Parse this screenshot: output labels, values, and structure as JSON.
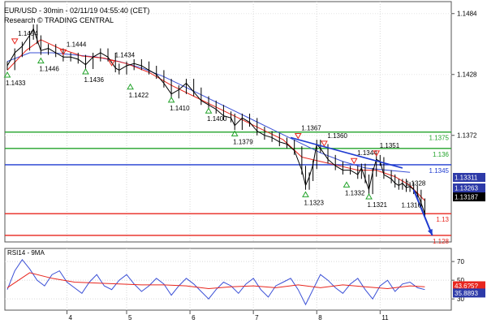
{
  "header": {
    "title": "EUR/USD - 30min - 02/11/19 04:55:40 (CET)",
    "source": "Research © TRADING CENTRAL"
  },
  "colors": {
    "price": "#000000",
    "ma_red": "#e8261e",
    "ma_blue": "#3a4fd6",
    "support": "#e8261e",
    "resistance": "#22a32a",
    "pivot": "#1f3bd0",
    "arrow": "#1f3bd0",
    "axis_tag": "#2d3aa8",
    "rsi": "#3a4fd6",
    "rsi_ma": "#e8261e"
  },
  "chart_data": [
    {
      "type": "line",
      "title": "EUR/USD - 30min - 02/11/19 04:55:40 (CET)",
      "x_tick_labels": [
        "4",
        "5",
        "6",
        "7",
        "8",
        "11"
      ],
      "y_tick_labels": [
        "1.1484",
        "1.1428",
        "1.1372"
      ],
      "ylim": [
        1.1274,
        1.1495
      ],
      "series": [
        {
          "values": [
            [
              0,
              1.1436
            ],
            [
              2,
              1.1448
            ],
            [
              4,
              1.1454
            ],
            [
              6,
              1.1464
            ],
            [
              7,
              1.147
            ],
            [
              8,
              1.146
            ],
            [
              9,
              1.145
            ],
            [
              11,
              1.1452
            ],
            [
              13,
              1.1448
            ],
            [
              15,
              1.1444
            ],
            [
              17,
              1.1444
            ],
            [
              19,
              1.1442
            ],
            [
              21,
              1.1437
            ],
            [
              23,
              1.1444
            ],
            [
              25,
              1.1448
            ],
            [
              27,
              1.1444
            ],
            [
              29,
              1.1434
            ],
            [
              30,
              1.1432
            ],
            [
              32,
              1.1436
            ],
            [
              34,
              1.1438
            ],
            [
              36,
              1.1436
            ],
            [
              38,
              1.1432
            ],
            [
              40,
              1.1428
            ],
            [
              42,
              1.142
            ],
            [
              44,
              1.141
            ],
            [
              46,
              1.1414
            ],
            [
              48,
              1.142
            ],
            [
              50,
              1.1412
            ],
            [
              52,
              1.1404
            ],
            [
              54,
              1.14
            ],
            [
              56,
              1.1396
            ],
            [
              58,
              1.139
            ],
            [
              60,
              1.1388
            ],
            [
              61,
              1.1381
            ],
            [
              63,
              1.1388
            ],
            [
              65,
              1.1384
            ],
            [
              67,
              1.1376
            ],
            [
              69,
              1.1372
            ],
            [
              71,
              1.137
            ],
            [
              73,
              1.1366
            ],
            [
              75,
              1.1364
            ],
            [
              77,
              1.1358
            ],
            [
              79,
              1.134
            ],
            [
              80,
              1.1326
            ],
            [
              81,
              1.1334
            ],
            [
              82,
              1.1345
            ],
            [
              83,
              1.1364
            ],
            [
              84,
              1.136
            ],
            [
              86,
              1.135
            ],
            [
              88,
              1.1344
            ],
            [
              90,
              1.134
            ],
            [
              92,
              1.134
            ],
            [
              94,
              1.1336
            ],
            [
              95,
              1.1342
            ],
            [
              96,
              1.1332
            ],
            [
              97,
              1.1322
            ],
            [
              98,
              1.1338
            ],
            [
              99,
              1.135
            ],
            [
              100,
              1.1348
            ],
            [
              101,
              1.1336
            ],
            [
              103,
              1.1332
            ],
            [
              104,
              1.1328
            ],
            [
              105,
              1.1326
            ],
            [
              106,
              1.1328
            ],
            [
              107,
              1.1324
            ],
            [
              108,
              1.1325
            ],
            [
              109,
              1.1322
            ],
            [
              110,
              1.1318
            ],
            [
              111,
              1.131
            ],
            [
              112,
              1.13
            ]
          ]
        },
        {
          "name": "MA fast",
          "values": [
            [
              0,
              1.1432
            ],
            [
              5,
              1.145
            ],
            [
              9,
              1.146
            ],
            [
              14,
              1.1452
            ],
            [
              20,
              1.1445
            ],
            [
              26,
              1.1443
            ],
            [
              32,
              1.1438
            ],
            [
              38,
              1.143
            ],
            [
              44,
              1.1418
            ],
            [
              50,
              1.1408
            ],
            [
              56,
              1.1398
            ],
            [
              62,
              1.1388
            ],
            [
              68,
              1.1378
            ],
            [
              74,
              1.1368
            ],
            [
              79,
              1.1352
            ],
            [
              84,
              1.1348
            ],
            [
              89,
              1.1344
            ],
            [
              94,
              1.134
            ],
            [
              99,
              1.134
            ],
            [
              104,
              1.1334
            ],
            [
              108,
              1.1326
            ],
            [
              112,
              1.1312
            ]
          ]
        },
        {
          "name": "MA slow",
          "values": [
            [
              0,
              1.144
            ],
            [
              6,
              1.1448
            ],
            [
              12,
              1.1448
            ],
            [
              18,
              1.1446
            ],
            [
              24,
              1.1444
            ],
            [
              30,
              1.144
            ],
            [
              36,
              1.1434
            ],
            [
              42,
              1.1426
            ],
            [
              48,
              1.1416
            ],
            [
              54,
              1.1406
            ],
            [
              60,
              1.1396
            ],
            [
              66,
              1.1386
            ],
            [
              72,
              1.1376
            ],
            [
              78,
              1.1366
            ],
            [
              84,
              1.1356
            ],
            [
              90,
              1.1348
            ],
            [
              96,
              1.1342
            ],
            [
              102,
              1.134
            ],
            [
              108,
              1.1338
            ]
          ]
        }
      ],
      "extremes": [
        {
          "x": 2,
          "value": 1.1454,
          "label": "1.1454",
          "kind": "high"
        },
        {
          "x": 15,
          "value": 1.1444,
          "label": "1.1444",
          "kind": "high"
        },
        {
          "x": 28,
          "value": 1.1434,
          "label": "1.1434",
          "kind": "high"
        },
        {
          "x": 78,
          "value": 1.1367,
          "label": "1.1367",
          "kind": "high"
        },
        {
          "x": 85,
          "value": 1.136,
          "label": "1.1360",
          "kind": "high"
        },
        {
          "x": 93,
          "value": 1.1344,
          "label": "1.1344",
          "kind": "high"
        },
        {
          "x": 99,
          "value": 1.1351,
          "label": "1.1351",
          "kind": "high"
        },
        {
          "x": 0,
          "value": 1.1433,
          "label": "1.1433",
          "kind": "low"
        },
        {
          "x": 9,
          "value": 1.1446,
          "label": "1.1446",
          "kind": "low"
        },
        {
          "x": 21,
          "value": 1.1436,
          "label": "1.1436",
          "kind": "low"
        },
        {
          "x": 33,
          "value": 1.1422,
          "label": "1.1422",
          "kind": "low"
        },
        {
          "x": 44,
          "value": 1.141,
          "label": "1.1410",
          "kind": "low"
        },
        {
          "x": 54,
          "value": 1.14,
          "label": "1.1400",
          "kind": "low"
        },
        {
          "x": 61,
          "value": 1.1379,
          "label": "1.1379",
          "kind": "low"
        },
        {
          "x": 80,
          "value": 1.1323,
          "label": "1.1323",
          "kind": "low"
        },
        {
          "x": 91,
          "value": 1.1332,
          "label": "1.1332",
          "kind": "low"
        },
        {
          "x": 97,
          "value": 1.1321,
          "label": "1.1321",
          "kind": "low"
        },
        {
          "x": 106,
          "value": 1.1328,
          "label": "1.1328",
          "kind": "high-minor"
        },
        {
          "x": 107,
          "value": 1.1316,
          "label": "1.1316",
          "kind": "low-minor"
        }
      ],
      "levels": [
        {
          "value": 1.1375,
          "label": "1.1375",
          "role": "resistance"
        },
        {
          "value": 1.136,
          "label": "1.136",
          "role": "resistance"
        },
        {
          "value": 1.1345,
          "label": "1.1345",
          "role": "pivot"
        },
        {
          "value": 1.13,
          "label": "1.13",
          "role": "support"
        },
        {
          "value": 1.128,
          "label": "1.128",
          "role": "support"
        }
      ],
      "axis_tags": [
        {
          "value": 1.13311,
          "label": "1.13311"
        },
        {
          "value": 1.13263,
          "label": "1.13263"
        },
        {
          "value": 1.13187,
          "label": "1.13187"
        }
      ],
      "trendline": {
        "from": [
          76,
          1.137
        ],
        "to": [
          106,
          1.1342
        ]
      },
      "forecast_arrow": {
        "from": [
          109,
          1.1322
        ],
        "to": [
          114,
          1.128
        ]
      }
    },
    {
      "type": "line",
      "title": "RSI14 - 9MA",
      "x_tick_labels": [
        "4",
        "5",
        "6",
        "7",
        "8",
        "11"
      ],
      "y_tick_labels": [
        "70",
        "50",
        "30"
      ],
      "ylim": [
        18,
        84
      ],
      "series": [
        {
          "values": [
            [
              0,
              40
            ],
            [
              2,
              60
            ],
            [
              4,
              72
            ],
            [
              6,
              62
            ],
            [
              8,
              50
            ],
            [
              10,
              44
            ],
            [
              12,
              56
            ],
            [
              14,
              60
            ],
            [
              16,
              48
            ],
            [
              18,
              42
            ],
            [
              20,
              36
            ],
            [
              22,
              48
            ],
            [
              24,
              56
            ],
            [
              26,
              44
            ],
            [
              28,
              40
            ],
            [
              30,
              50
            ],
            [
              32,
              56
            ],
            [
              34,
              46
            ],
            [
              36,
              38
            ],
            [
              38,
              44
            ],
            [
              40,
              52
            ],
            [
              42,
              46
            ],
            [
              44,
              34
            ],
            [
              46,
              44
            ],
            [
              48,
              52
            ],
            [
              50,
              46
            ],
            [
              52,
              38
            ],
            [
              54,
              30
            ],
            [
              56,
              40
            ],
            [
              58,
              48
            ],
            [
              60,
              44
            ],
            [
              62,
              36
            ],
            [
              64,
              46
            ],
            [
              66,
              52
            ],
            [
              68,
              40
            ],
            [
              70,
              32
            ],
            [
              72,
              44
            ],
            [
              74,
              48
            ],
            [
              76,
              52
            ],
            [
              78,
              40
            ],
            [
              80,
              24
            ],
            [
              82,
              40
            ],
            [
              84,
              56
            ],
            [
              86,
              50
            ],
            [
              88,
              42
            ],
            [
              90,
              36
            ],
            [
              92,
              46
            ],
            [
              94,
              52
            ],
            [
              96,
              40
            ],
            [
              98,
              30
            ],
            [
              100,
              44
            ],
            [
              102,
              50
            ],
            [
              104,
              38
            ],
            [
              106,
              46
            ],
            [
              108,
              48
            ],
            [
              110,
              42
            ],
            [
              112,
              40
            ]
          ]
        },
        {
          "values": [
            [
              0,
              42
            ],
            [
              6,
              58
            ],
            [
              12,
              52
            ],
            [
              18,
              48
            ],
            [
              24,
              47
            ],
            [
              30,
              46
            ],
            [
              36,
              45
            ],
            [
              42,
              45
            ],
            [
              48,
              44
            ],
            [
              54,
              41
            ],
            [
              60,
              43
            ],
            [
              66,
              44
            ],
            [
              72,
              42
            ],
            [
              78,
              45
            ],
            [
              84,
              42
            ],
            [
              90,
              45
            ],
            [
              96,
              43
            ],
            [
              102,
              41
            ],
            [
              108,
              44
            ],
            [
              112,
              43
            ]
          ]
        }
      ],
      "axis_tags": [
        {
          "value": 43.63,
          "label": "43.6?5?"
        },
        {
          "value": 35.8893,
          "label": "35.8893"
        }
      ]
    }
  ]
}
